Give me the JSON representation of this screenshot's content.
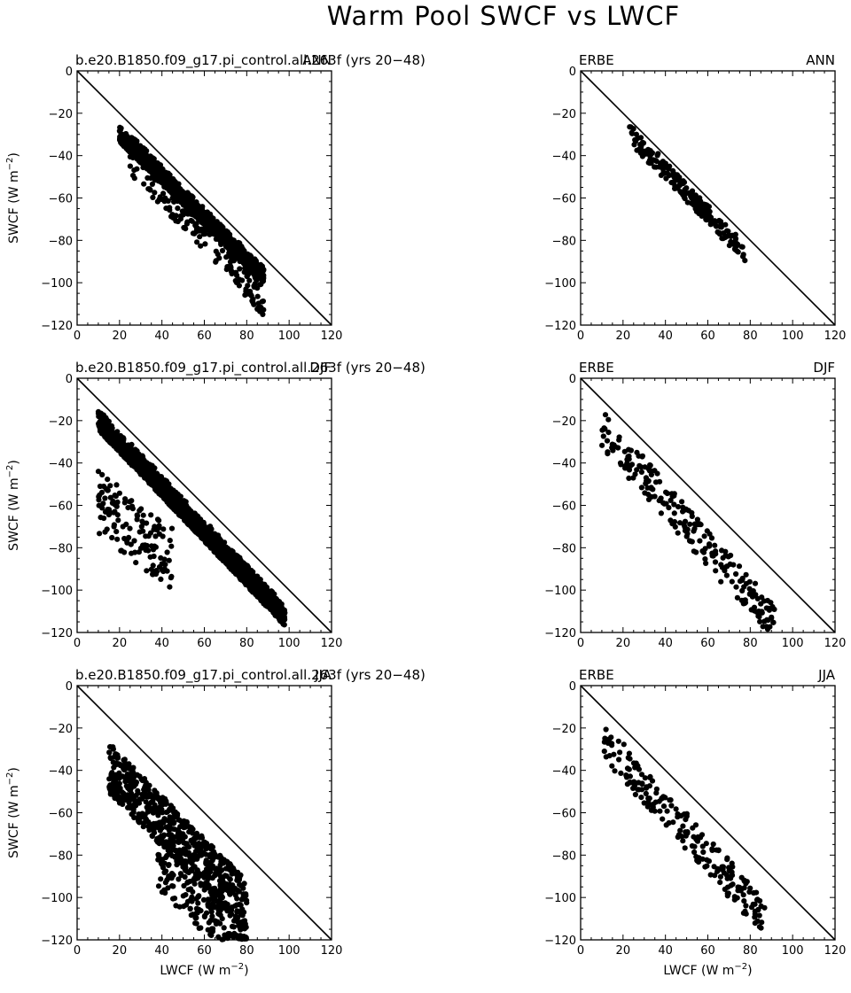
{
  "figure_title": "Warm Pool SWCF vs LWCF",
  "axis_labels": {
    "x": "LWCF (W m",
    "y": "SWCF (W m",
    "unit_exponent": "−2"
  },
  "chart_data": [
    {
      "type": "scatter",
      "left_title": "b.e20.B1850.f09_g17.pi_control.all.263f (yrs 20−48)",
      "right_title": "ANN",
      "xlim": [
        0,
        120
      ],
      "ylim": [
        -120,
        0
      ],
      "xticks": [
        0,
        20,
        40,
        60,
        80,
        100,
        120
      ],
      "yticks": [
        0,
        -20,
        -40,
        -60,
        -80,
        -100,
        -120
      ],
      "grid": false,
      "reference_line": "y = -x",
      "clusters": [
        {
          "x_range": [
            20,
            88
          ],
          "slope": -0.98,
          "intercept": 2,
          "spread_low": 8,
          "spread_high": 16,
          "gamma": 0.55,
          "count": 1500,
          "seed": 11
        },
        {
          "x_range": [
            25,
            70
          ],
          "slope": -1.0,
          "intercept": 5,
          "spread_low": 10,
          "spread_high": 30,
          "gamma": 1.4,
          "count": 220,
          "seed": 12
        },
        {
          "x_range": [
            70,
            88
          ],
          "slope": -1.2,
          "intercept": 5,
          "spread_low": 0,
          "spread_high": 16,
          "gamma": 1.0,
          "count": 90,
          "seed": 13
        }
      ]
    },
    {
      "type": "scatter",
      "left_title": "ERBE",
      "right_title": "ANN",
      "xlim": [
        0,
        120
      ],
      "ylim": [
        -120,
        0
      ],
      "xticks": [
        0,
        20,
        40,
        60,
        80,
        100,
        120
      ],
      "yticks": [
        0,
        -20,
        -40,
        -60,
        -80,
        -100,
        -120
      ],
      "grid": false,
      "reference_line": "y = -x",
      "clusters": [
        {
          "x_range": [
            23,
            78
          ],
          "slope": -1.04,
          "intercept": 2,
          "spread_low": 3,
          "spread_high": 12,
          "gamma": 0.9,
          "count": 210,
          "seed": 21
        }
      ]
    },
    {
      "type": "scatter",
      "left_title": "b.e20.B1850.f09_g17.pi_control.all.263f (yrs 20−48)",
      "right_title": "DJF",
      "xlim": [
        0,
        120
      ],
      "ylim": [
        -120,
        0
      ],
      "xticks": [
        0,
        20,
        40,
        60,
        80,
        100,
        120
      ],
      "yticks": [
        0,
        -20,
        -40,
        -60,
        -80,
        -100,
        -120
      ],
      "grid": false,
      "reference_line": "y = -x",
      "clusters": [
        {
          "x_range": [
            10,
            98
          ],
          "slope": -1.05,
          "intercept": 0,
          "spread_low": 4,
          "spread_high": 14,
          "gamma": 0.7,
          "count": 1700,
          "seed": 31
        },
        {
          "x_range": [
            10,
            45
          ],
          "slope": -0.8,
          "intercept": -35,
          "spread_low": 0,
          "spread_high": 30,
          "gamma": 1.0,
          "count": 140,
          "seed": 32
        }
      ]
    },
    {
      "type": "scatter",
      "left_title": "ERBE",
      "right_title": "DJF",
      "xlim": [
        0,
        120
      ],
      "ylim": [
        -120,
        0
      ],
      "xticks": [
        0,
        20,
        40,
        60,
        80,
        100,
        120
      ],
      "yticks": [
        0,
        -20,
        -40,
        -60,
        -80,
        -100,
        -120
      ],
      "grid": false,
      "reference_line": "y = -x",
      "clusters": [
        {
          "x_range": [
            10,
            92
          ],
          "slope": -1.12,
          "intercept": -2,
          "spread_low": 2,
          "spread_high": 20,
          "gamma": 1.1,
          "count": 220,
          "seed": 41
        }
      ]
    },
    {
      "type": "scatter",
      "left_title": "b.e20.B1850.f09_g17.pi_control.all.263f (yrs 20−48)",
      "right_title": "JJA",
      "xlim": [
        0,
        120
      ],
      "ylim": [
        -120,
        0
      ],
      "xticks": [
        0,
        20,
        40,
        60,
        80,
        100,
        120
      ],
      "yticks": [
        0,
        -20,
        -40,
        -60,
        -80,
        -100,
        -120
      ],
      "grid": false,
      "reference_line": "y = -x",
      "clusters": [
        {
          "x_range": [
            15,
            80
          ],
          "slope": -1.0,
          "intercept": -12,
          "spread_low": 0,
          "spread_high": 24,
          "gamma": 1.0,
          "count": 650,
          "seed": 51
        },
        {
          "x_range": [
            38,
            80
          ],
          "slope": -0.95,
          "intercept": -38,
          "spread_low": 0,
          "spread_high": 22,
          "gamma": 1.0,
          "count": 170,
          "seed": 52
        }
      ]
    },
    {
      "type": "scatter",
      "left_title": "ERBE",
      "right_title": "JJA",
      "xlim": [
        0,
        120
      ],
      "ylim": [
        -120,
        0
      ],
      "xticks": [
        0,
        20,
        40,
        60,
        80,
        100,
        120
      ],
      "yticks": [
        0,
        -20,
        -40,
        -60,
        -80,
        -100,
        -120
      ],
      "grid": false,
      "reference_line": "y = -x",
      "clusters": [
        {
          "x_range": [
            11,
            87
          ],
          "slope": -1.1,
          "intercept": -5,
          "spread_low": 0,
          "spread_high": 18,
          "gamma": 1.0,
          "count": 210,
          "seed": 61
        }
      ]
    }
  ]
}
